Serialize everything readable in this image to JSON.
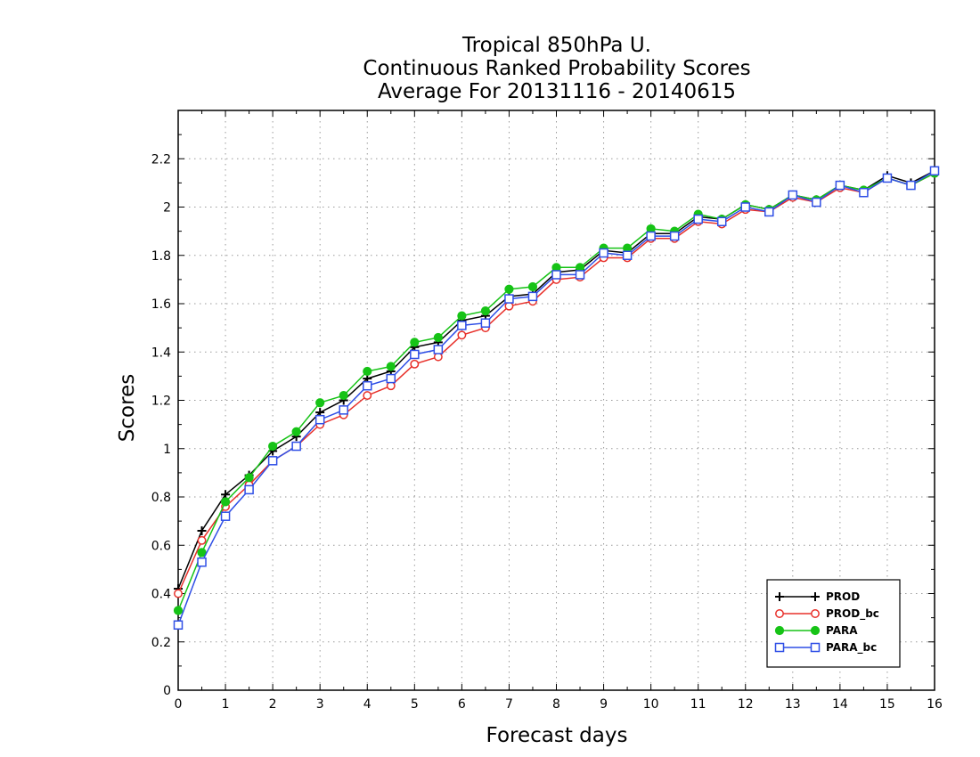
{
  "chart_data": {
    "type": "line",
    "title": [
      "Tropical 850hPa U.",
      "Continuous Ranked Probability Scores",
      "Average For 20131116 - 20140615"
    ],
    "xlabel": "Forecast days",
    "ylabel": "Scores",
    "xlim": [
      0,
      16
    ],
    "ylim": [
      0,
      2.4
    ],
    "xticks": [
      0,
      1,
      2,
      3,
      4,
      5,
      6,
      7,
      8,
      9,
      10,
      11,
      12,
      13,
      14,
      15,
      16
    ],
    "yticks": [
      0,
      0.2,
      0.4,
      0.6,
      0.8,
      1,
      1.2,
      1.4,
      1.6,
      1.8,
      2,
      2.2
    ],
    "grid": true,
    "legend_position": "bottom-right",
    "x": [
      0,
      0.5,
      1,
      1.5,
      2,
      2.5,
      3,
      3.5,
      4,
      4.5,
      5,
      5.5,
      6,
      6.5,
      7,
      7.5,
      8,
      8.5,
      9,
      9.5,
      10,
      10.5,
      11,
      11.5,
      12,
      12.5,
      13,
      13.5,
      14,
      14.5,
      15,
      15.5,
      16
    ],
    "series": [
      {
        "name": "PROD",
        "color": "#000000",
        "marker": "plus",
        "values": [
          0.42,
          0.66,
          0.81,
          0.89,
          0.99,
          1.05,
          1.15,
          1.2,
          1.29,
          1.32,
          1.42,
          1.44,
          1.53,
          1.55,
          1.63,
          1.64,
          1.73,
          1.74,
          1.82,
          1.81,
          1.89,
          1.89,
          1.96,
          1.95,
          2.01,
          1.99,
          2.05,
          2.03,
          2.09,
          2.07,
          2.13,
          2.1,
          2.15
        ]
      },
      {
        "name": "PROD_bc",
        "color": "#e8302a",
        "marker": "circle-open",
        "values": [
          0.4,
          0.62,
          0.76,
          0.85,
          0.95,
          1.01,
          1.1,
          1.14,
          1.22,
          1.26,
          1.35,
          1.38,
          1.47,
          1.5,
          1.59,
          1.61,
          1.7,
          1.71,
          1.79,
          1.79,
          1.87,
          1.87,
          1.94,
          1.93,
          1.99,
          1.98,
          2.04,
          2.02,
          2.08,
          2.06,
          2.12,
          2.09,
          2.14
        ]
      },
      {
        "name": "PARA",
        "color": "#16c316",
        "marker": "circle-filled",
        "values": [
          0.33,
          0.57,
          0.78,
          0.88,
          1.01,
          1.07,
          1.19,
          1.22,
          1.32,
          1.34,
          1.44,
          1.46,
          1.55,
          1.57,
          1.66,
          1.67,
          1.75,
          1.75,
          1.83,
          1.83,
          1.91,
          1.9,
          1.97,
          1.95,
          2.01,
          1.99,
          2.05,
          2.03,
          2.09,
          2.07,
          2.12,
          2.09,
          2.14
        ]
      },
      {
        "name": "PARA_bc",
        "color": "#2f4fe6",
        "marker": "square-open",
        "values": [
          0.27,
          0.53,
          0.72,
          0.83,
          0.95,
          1.01,
          1.12,
          1.16,
          1.26,
          1.29,
          1.39,
          1.41,
          1.51,
          1.52,
          1.62,
          1.63,
          1.72,
          1.72,
          1.81,
          1.8,
          1.88,
          1.88,
          1.95,
          1.94,
          2.0,
          1.98,
          2.05,
          2.02,
          2.09,
          2.06,
          2.12,
          2.09,
          2.15
        ]
      }
    ]
  }
}
